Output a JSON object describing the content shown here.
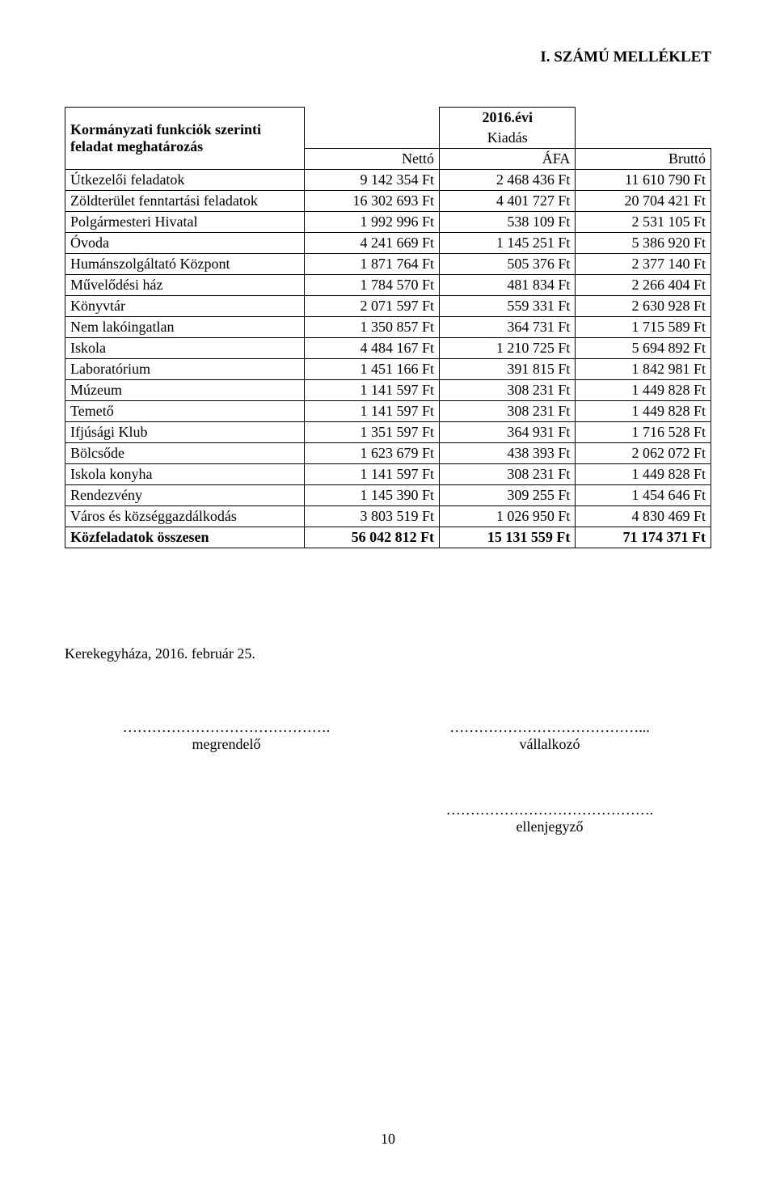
{
  "top_title": "I. SZÁMÚ MELLÉKLET",
  "header": {
    "main": "Kormányzati funkciók szerinti feladat meghatározás",
    "year": "2016.évi",
    "kiadas": "Kiadás",
    "col_netto": "Nettó",
    "col_afa": "ÁFA",
    "col_brutto": "Bruttó"
  },
  "rows": [
    {
      "label": "Útkezelői feladatok",
      "netto": "9 142 354 Ft",
      "afa": "2 468 436 Ft",
      "brutto": "11 610 790 Ft"
    },
    {
      "label": "Zöldterület fenntartási feladatok",
      "netto": "16 302 693 Ft",
      "afa": "4 401 727 Ft",
      "brutto": "20 704 421 Ft"
    },
    {
      "label": "Polgármesteri Hivatal",
      "netto": "1 992 996 Ft",
      "afa": "538 109 Ft",
      "brutto": "2 531 105 Ft"
    },
    {
      "label": "Óvoda",
      "netto": "4 241 669 Ft",
      "afa": "1 145 251 Ft",
      "brutto": "5 386 920 Ft"
    },
    {
      "label": "Humánszolgáltató Központ",
      "netto": "1 871 764 Ft",
      "afa": "505 376 Ft",
      "brutto": "2 377 140 Ft"
    },
    {
      "label": "Művelődési ház",
      "netto": "1 784 570 Ft",
      "afa": "481 834 Ft",
      "brutto": "2 266 404 Ft"
    },
    {
      "label": "Könyvtár",
      "netto": "2 071 597 Ft",
      "afa": "559 331 Ft",
      "brutto": "2 630 928 Ft"
    },
    {
      "label": "Nem lakóingatlan",
      "netto": "1 350 857 Ft",
      "afa": "364 731 Ft",
      "brutto": "1 715 589 Ft"
    },
    {
      "label": "Iskola",
      "netto": "4 484 167 Ft",
      "afa": "1 210 725 Ft",
      "brutto": "5 694 892 Ft"
    },
    {
      "label": "Laboratórium",
      "netto": "1 451 166 Ft",
      "afa": "391 815 Ft",
      "brutto": "1 842 981 Ft"
    },
    {
      "label": "Múzeum",
      "netto": "1 141 597 Ft",
      "afa": "308 231 Ft",
      "brutto": "1 449 828 Ft"
    },
    {
      "label": "Temető",
      "netto": "1 141 597 Ft",
      "afa": "308 231 Ft",
      "brutto": "1 449 828 Ft"
    },
    {
      "label": "Ifjúsági Klub",
      "netto": "1 351 597 Ft",
      "afa": "364 931 Ft",
      "brutto": "1 716 528 Ft"
    },
    {
      "label": "Bölcsőde",
      "netto": "1 623 679 Ft",
      "afa": "438 393 Ft",
      "brutto": "2 062 072 Ft"
    },
    {
      "label": "Iskola konyha",
      "netto": "1 141 597 Ft",
      "afa": "308 231 Ft",
      "brutto": "1 449 828 Ft"
    },
    {
      "label": "Rendezvény",
      "netto": "1 145 390 Ft",
      "afa": "309 255 Ft",
      "brutto": "1 454 646 Ft"
    },
    {
      "label": "Város és községgazdálkodás",
      "netto": "3 803 519 Ft",
      "afa": "1 026 950 Ft",
      "brutto": "4 830 469 Ft"
    }
  ],
  "total": {
    "label": "Közfeladatok összesen",
    "netto": "56 042 812 Ft",
    "afa": "15 131 559 Ft",
    "brutto": "71 174 371 Ft"
  },
  "footer_date": "Kerekegyháza, 2016. február 25.",
  "sign": {
    "left_dots": "…………………………………….",
    "left_label": "megrendelő",
    "right_dots": "…………………………………...",
    "right_label": "vállalkozó",
    "bottom_dots": "…………………………………….",
    "bottom_label": "ellenjegyző"
  },
  "page_number": "10"
}
